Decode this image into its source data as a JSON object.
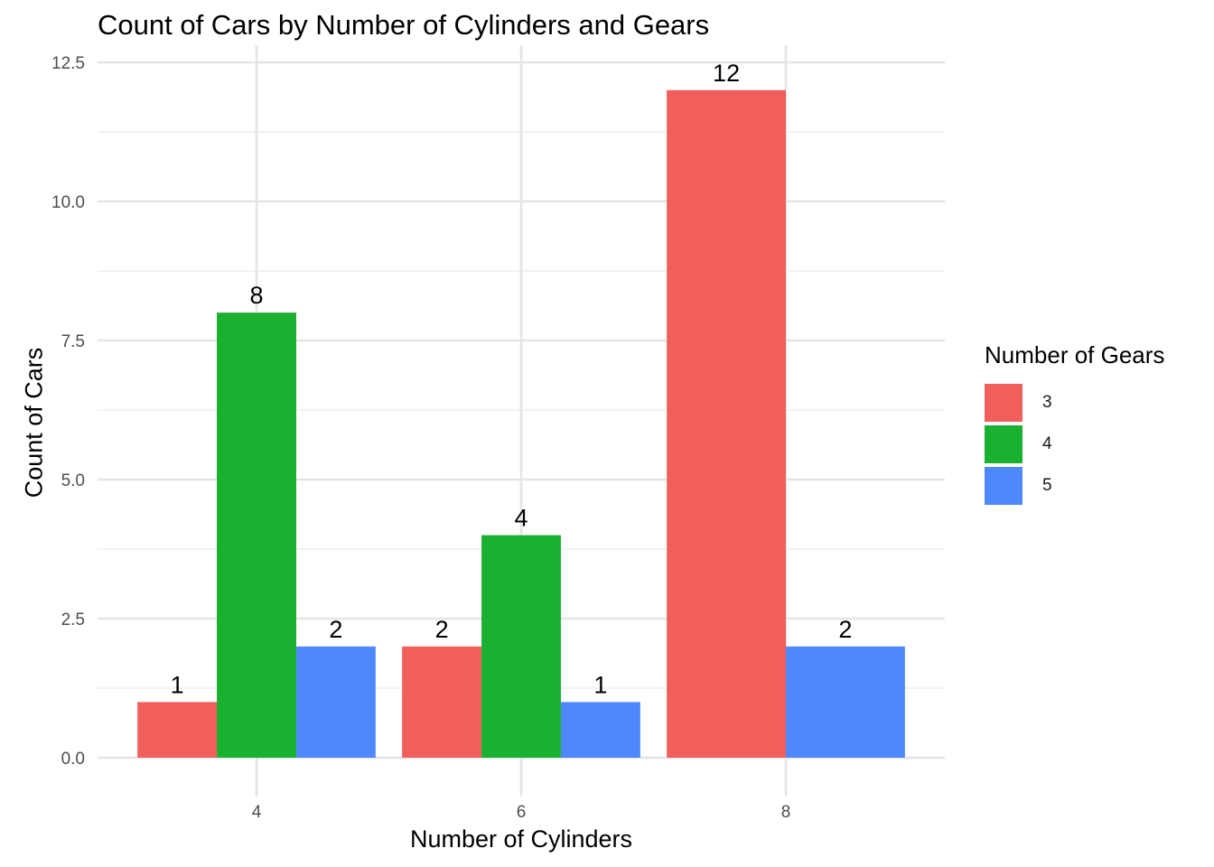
{
  "chart_data": {
    "type": "bar",
    "title": "Count of Cars by Number of Cylinders and Gears",
    "xlabel": "Number of Cylinders",
    "ylabel": "Count of Cars",
    "categories": [
      "4",
      "6",
      "8"
    ],
    "series": [
      {
        "name": "3",
        "color": "#F15F5C",
        "values": [
          1,
          2,
          12
        ]
      },
      {
        "name": "4",
        "color": "#1AB030",
        "values": [
          8,
          4,
          null
        ]
      },
      {
        "name": "5",
        "color": "#4F88FD",
        "values": [
          2,
          1,
          2
        ]
      }
    ],
    "ylim": [
      0,
      12.5
    ],
    "yticks": [
      "0.0",
      "2.5",
      "5.0",
      "7.5",
      "10.0",
      "12.5"
    ],
    "grid": true,
    "legend": {
      "title": "Number of Gears",
      "position": "right"
    },
    "bar_labels": true
  }
}
